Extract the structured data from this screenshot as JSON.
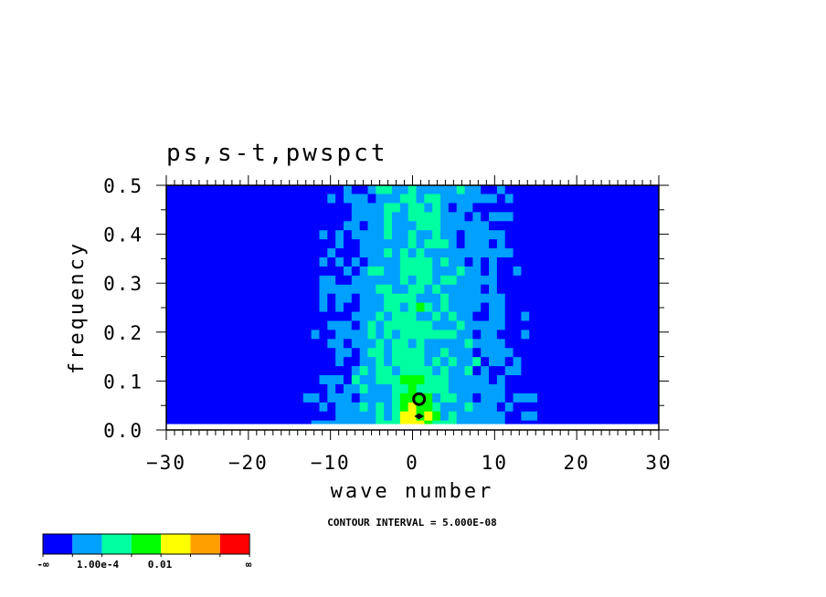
{
  "chart_data": {
    "type": "heatmap",
    "title": "ps,s-t,pwspct",
    "xlabel": "wave number",
    "ylabel": "frequency",
    "xlim": [
      -30,
      30
    ],
    "ylim": [
      0,
      0.5
    ],
    "x_ticks": [
      "-30",
      "-20",
      "-10",
      "0",
      "10",
      "20",
      "30"
    ],
    "x_tick_values": [
      -30,
      -20,
      -10,
      0,
      10,
      20,
      30
    ],
    "y_ticks": [
      "0.0",
      "0.1",
      "0.2",
      "0.3",
      "0.4",
      "0.5"
    ],
    "y_tick_values": [
      0,
      0.1,
      0.2,
      0.3,
      0.4,
      0.5
    ],
    "annotation": "CONTOUR INTERVAL = 5.000E-08",
    "colorbar": {
      "colors": [
        "#0000ff",
        "#00a0ff",
        "#00ffa0",
        "#00ff00",
        "#ffff00",
        "#ffa000",
        "#ff0000"
      ],
      "labels": [
        "-∞",
        "1.00e-4",
        "0.01",
        "∞"
      ]
    }
  }
}
